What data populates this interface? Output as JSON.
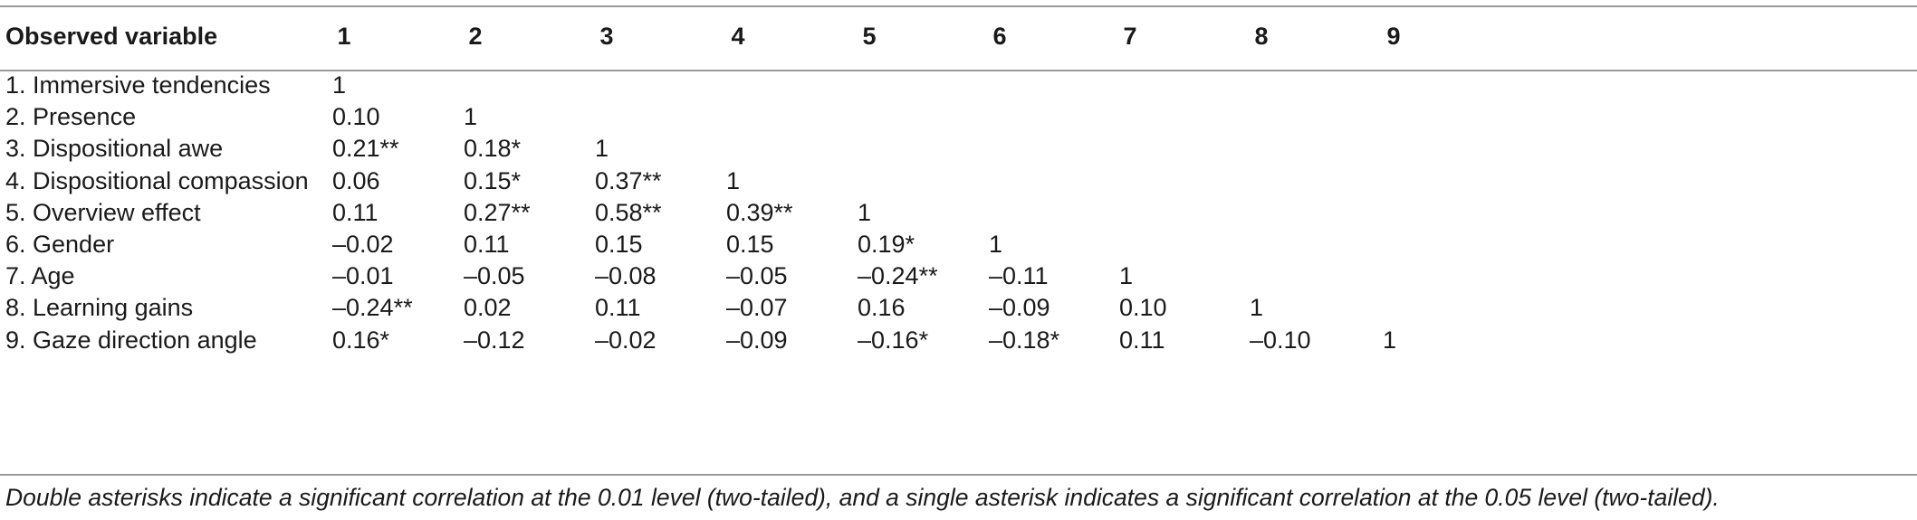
{
  "table": {
    "headers": [
      "Observed variable",
      "1",
      "2",
      "3",
      "4",
      "5",
      "6",
      "7",
      "8",
      "9"
    ],
    "rows": [
      [
        "1. Immersive tendencies",
        "1",
        "",
        "",
        "",
        "",
        "",
        "",
        "",
        ""
      ],
      [
        "2. Presence",
        "0.10",
        "1",
        "",
        "",
        "",
        "",
        "",
        "",
        ""
      ],
      [
        "3. Dispositional awe",
        "0.21**",
        "0.18*",
        "1",
        "",
        "",
        "",
        "",
        "",
        ""
      ],
      [
        "4. Dispositional compassion",
        "0.06",
        "0.15*",
        "0.37**",
        "1",
        "",
        "",
        "",
        "",
        ""
      ],
      [
        "5. Overview effect",
        "0.11",
        "0.27**",
        "0.58**",
        "0.39**",
        "1",
        "",
        "",
        "",
        ""
      ],
      [
        "6. Gender",
        "–0.02",
        "0.11",
        "0.15",
        "0.15",
        "0.19*",
        "1",
        "",
        "",
        ""
      ],
      [
        "7. Age",
        "–0.01",
        "–0.05",
        "–0.08",
        "–0.05",
        "–0.24**",
        "–0.11",
        "1",
        "",
        ""
      ],
      [
        "8. Learning gains",
        "–0.24**",
        "0.02",
        "0.11",
        "–0.07",
        "0.16",
        "–0.09",
        "0.10",
        "1",
        ""
      ],
      [
        "9. Gaze direction angle",
        "0.16*",
        "–0.12",
        "–0.02",
        "–0.09",
        "–0.16*",
        "–0.18*",
        "0.11",
        "–0.10",
        "1"
      ]
    ],
    "footnote": "Double asterisks indicate a significant correlation at the 0.01 level (two-tailed), and a single asterisk indicates a significant correlation at the 0.05 level (two-tailed)."
  }
}
